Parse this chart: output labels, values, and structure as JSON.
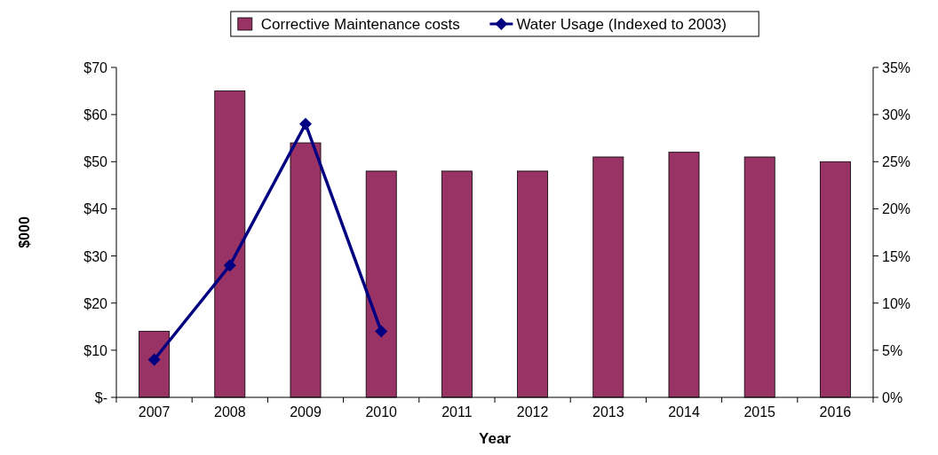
{
  "chart_data": {
    "type": "bar",
    "xlabel": "Year",
    "ylabel": "$000",
    "categories": [
      "2007",
      "2008",
      "2009",
      "2010",
      "2011",
      "2012",
      "2013",
      "2014",
      "2015",
      "2016"
    ],
    "series": [
      {
        "name": "Corrective Maintenance costs",
        "color": "#993366",
        "values": [
          14,
          65,
          54,
          48,
          48,
          48,
          51,
          52,
          51,
          50
        ]
      },
      {
        "name": "Water Usage (Indexed to 2003)",
        "type": "line",
        "axis": "y2",
        "color": "#000080",
        "marker": "diamond",
        "values": [
          4,
          14,
          29,
          7,
          null,
          null,
          null,
          null,
          null,
          null
        ]
      }
    ],
    "ylim": [
      0,
      70
    ],
    "yticks": [
      {
        "value": 0,
        "label": "$-"
      },
      {
        "value": 10,
        "label": "$10"
      },
      {
        "value": 20,
        "label": "$20"
      },
      {
        "value": 30,
        "label": "$30"
      },
      {
        "value": 40,
        "label": "$40"
      },
      {
        "value": 50,
        "label": "$50"
      },
      {
        "value": 60,
        "label": "$60"
      },
      {
        "value": 70,
        "label": "$70"
      }
    ],
    "y2lim": [
      0,
      35
    ],
    "y2ticks": [
      {
        "value": 0,
        "label": "0%"
      },
      {
        "value": 5,
        "label": "5%"
      },
      {
        "value": 10,
        "label": "10%"
      },
      {
        "value": 15,
        "label": "15%"
      },
      {
        "value": 20,
        "label": "20%"
      },
      {
        "value": 25,
        "label": "25%"
      },
      {
        "value": 30,
        "label": "30%"
      },
      {
        "value": 35,
        "label": "35%"
      }
    ],
    "grid": false,
    "legend": "top"
  }
}
